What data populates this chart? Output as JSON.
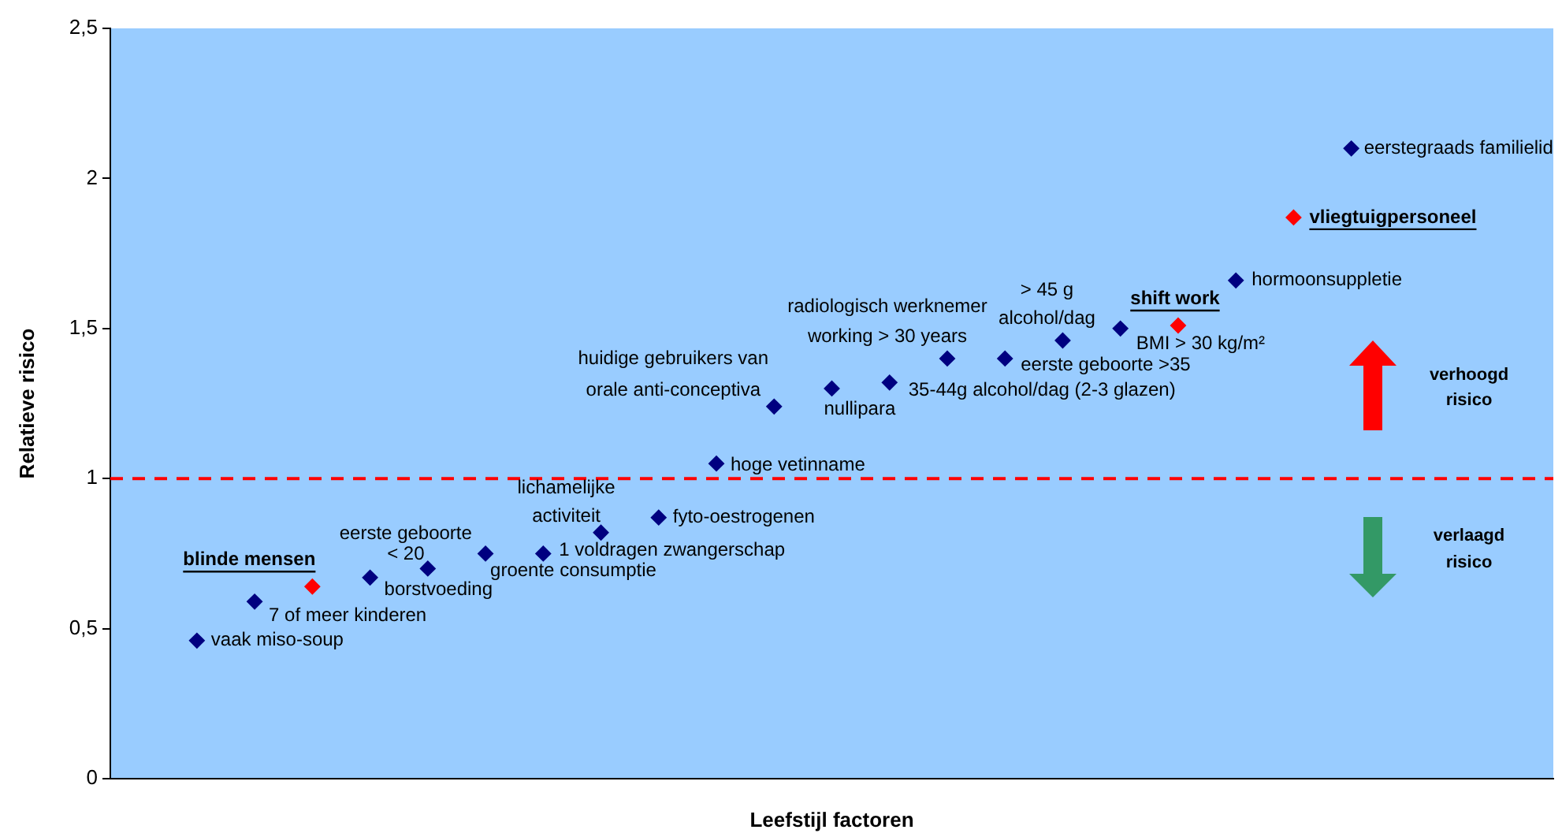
{
  "chart_data": {
    "type": "scatter",
    "xlabel": "Leefstijl factoren",
    "ylabel": "Relatieve risico",
    "categories": [
      null,
      null,
      null,
      null,
      null,
      null,
      null,
      null,
      null,
      null,
      null,
      null,
      null,
      null,
      null,
      null,
      null,
      null,
      null,
      null,
      null,
      null,
      null,
      null,
      null
    ],
    "ylim": [
      0,
      2.5
    ],
    "yticks": [
      0,
      {
        "value": 0.5,
        "label": "0,5"
      },
      1,
      {
        "value": 1.5,
        "label": "1,5"
      },
      2,
      {
        "value": 2.5,
        "label": "2,5"
      }
    ],
    "tick_labels": "y",
    "grid": false,
    "legend": false,
    "marker": "diamond",
    "ref_lines": [
      {
        "axis": "y",
        "value": 1,
        "color": "#ff0000",
        "line_style": "dashed"
      }
    ],
    "annotations": [
      "verhoogd risico",
      "verlaagd risico"
    ],
    "series": [
      {
        "name": "vaak miso-soup",
        "color": "#000080",
        "values": [
          null,
          0.46,
          null,
          null,
          null,
          null,
          null,
          null,
          null,
          null,
          null,
          null,
          null,
          null,
          null,
          null,
          null,
          null,
          null,
          null,
          null,
          null,
          null,
          null,
          null
        ]
      },
      {
        "name": "7 of meer kinderen",
        "color": "#000080",
        "values": [
          null,
          null,
          0.59,
          null,
          null,
          null,
          null,
          null,
          null,
          null,
          null,
          null,
          null,
          null,
          null,
          null,
          null,
          null,
          null,
          null,
          null,
          null,
          null,
          null,
          null
        ]
      },
      {
        "name": "blinde mensen",
        "color": "#ff0000",
        "values": [
          null,
          null,
          null,
          0.64,
          null,
          null,
          null,
          null,
          null,
          null,
          null,
          null,
          null,
          null,
          null,
          null,
          null,
          null,
          null,
          null,
          null,
          null,
          null,
          null,
          null
        ]
      },
      {
        "name": "borstvoeding",
        "color": "#000080",
        "values": [
          null,
          null,
          null,
          null,
          0.67,
          null,
          null,
          null,
          null,
          null,
          null,
          null,
          null,
          null,
          null,
          null,
          null,
          null,
          null,
          null,
          null,
          null,
          null,
          null,
          null
        ]
      },
      {
        "name": "eerste geboorte < 20",
        "color": "#000080",
        "values": [
          null,
          null,
          null,
          null,
          null,
          0.7,
          null,
          null,
          null,
          null,
          null,
          null,
          null,
          null,
          null,
          null,
          null,
          null,
          null,
          null,
          null,
          null,
          null,
          null,
          null
        ]
      },
      {
        "name": "groente consumptie",
        "color": "#000080",
        "values": [
          null,
          null,
          null,
          null,
          null,
          null,
          0.75,
          null,
          null,
          null,
          null,
          null,
          null,
          null,
          null,
          null,
          null,
          null,
          null,
          null,
          null,
          null,
          null,
          null,
          null
        ]
      },
      {
        "name": "1 voldragen zwangerschap",
        "color": "#000080",
        "values": [
          null,
          null,
          null,
          null,
          null,
          null,
          null,
          0.75,
          null,
          null,
          null,
          null,
          null,
          null,
          null,
          null,
          null,
          null,
          null,
          null,
          null,
          null,
          null,
          null,
          null
        ]
      },
      {
        "name": "lichamelijke activiteit",
        "color": "#000080",
        "values": [
          null,
          null,
          null,
          null,
          null,
          null,
          null,
          null,
          0.82,
          null,
          null,
          null,
          null,
          null,
          null,
          null,
          null,
          null,
          null,
          null,
          null,
          null,
          null,
          null,
          null
        ]
      },
      {
        "name": "fyto-oestrogenen",
        "color": "#000080",
        "values": [
          null,
          null,
          null,
          null,
          null,
          null,
          null,
          null,
          null,
          0.87,
          null,
          null,
          null,
          null,
          null,
          null,
          null,
          null,
          null,
          null,
          null,
          null,
          null,
          null,
          null
        ]
      },
      {
        "name": "hoge vetinname",
        "color": "#000080",
        "values": [
          null,
          null,
          null,
          null,
          null,
          null,
          null,
          null,
          null,
          null,
          1.05,
          null,
          null,
          null,
          null,
          null,
          null,
          null,
          null,
          null,
          null,
          null,
          null,
          null,
          null
        ]
      },
      {
        "name": "huidige gebruikers van orale anti-conceptiva",
        "color": "#000080",
        "values": [
          null,
          null,
          null,
          null,
          null,
          null,
          null,
          null,
          null,
          null,
          null,
          1.24,
          null,
          null,
          null,
          null,
          null,
          null,
          null,
          null,
          null,
          null,
          null,
          null,
          null
        ]
      },
      {
        "name": "nullipara",
        "color": "#000080",
        "values": [
          null,
          null,
          null,
          null,
          null,
          null,
          null,
          null,
          null,
          null,
          null,
          null,
          1.3,
          null,
          null,
          null,
          null,
          null,
          null,
          null,
          null,
          null,
          null,
          null,
          null
        ]
      },
      {
        "name": "35-44g alcohol/dag (2-3 glazen)",
        "color": "#000080",
        "values": [
          null,
          null,
          null,
          null,
          null,
          null,
          null,
          null,
          null,
          null,
          null,
          null,
          null,
          1.32,
          null,
          null,
          null,
          null,
          null,
          null,
          null,
          null,
          null,
          null,
          null
        ]
      },
      {
        "name": "radiologisch werknemer working > 30 years",
        "color": "#000080",
        "values": [
          null,
          null,
          null,
          null,
          null,
          null,
          null,
          null,
          null,
          null,
          null,
          null,
          null,
          null,
          1.4,
          null,
          null,
          null,
          null,
          null,
          null,
          null,
          null,
          null,
          null
        ]
      },
      {
        "name": "eerste geboorte >35",
        "color": "#000080",
        "values": [
          null,
          null,
          null,
          null,
          null,
          null,
          null,
          null,
          null,
          null,
          null,
          null,
          null,
          null,
          null,
          1.4,
          null,
          null,
          null,
          null,
          null,
          null,
          null,
          null,
          null
        ]
      },
      {
        "name": "> 45 g alcohol/dag",
        "color": "#000080",
        "values": [
          null,
          null,
          null,
          null,
          null,
          null,
          null,
          null,
          null,
          null,
          null,
          null,
          null,
          null,
          null,
          null,
          1.46,
          null,
          null,
          null,
          null,
          null,
          null,
          null,
          null
        ]
      },
      {
        "name": "BMI > 30 kg/m²",
        "color": "#000080",
        "values": [
          null,
          null,
          null,
          null,
          null,
          null,
          null,
          null,
          null,
          null,
          null,
          null,
          null,
          null,
          null,
          null,
          null,
          1.5,
          null,
          null,
          null,
          null,
          null,
          null,
          null
        ]
      },
      {
        "name": "shift work",
        "color": "#ff0000",
        "values": [
          null,
          null,
          null,
          null,
          null,
          null,
          null,
          null,
          null,
          null,
          null,
          null,
          null,
          null,
          null,
          null,
          null,
          null,
          1.51,
          null,
          null,
          null,
          null,
          null,
          null
        ]
      },
      {
        "name": "hormoonsuppletie",
        "color": "#000080",
        "values": [
          null,
          null,
          null,
          null,
          null,
          null,
          null,
          null,
          null,
          null,
          null,
          null,
          null,
          null,
          null,
          null,
          null,
          null,
          null,
          1.66,
          null,
          null,
          null,
          null,
          null
        ]
      },
      {
        "name": "vliegtuigpersoneel",
        "color": "#ff0000",
        "values": [
          null,
          null,
          null,
          null,
          null,
          null,
          null,
          null,
          null,
          null,
          null,
          null,
          null,
          null,
          null,
          null,
          null,
          null,
          null,
          null,
          1.87,
          null,
          null,
          null,
          null
        ]
      },
      {
        "name": "eerstegraads familielid",
        "color": "#000080",
        "values": [
          null,
          null,
          null,
          null,
          null,
          null,
          null,
          null,
          null,
          null,
          null,
          null,
          null,
          null,
          null,
          null,
          null,
          null,
          null,
          null,
          null,
          2.1,
          null,
          null,
          null
        ]
      }
    ]
  }
}
